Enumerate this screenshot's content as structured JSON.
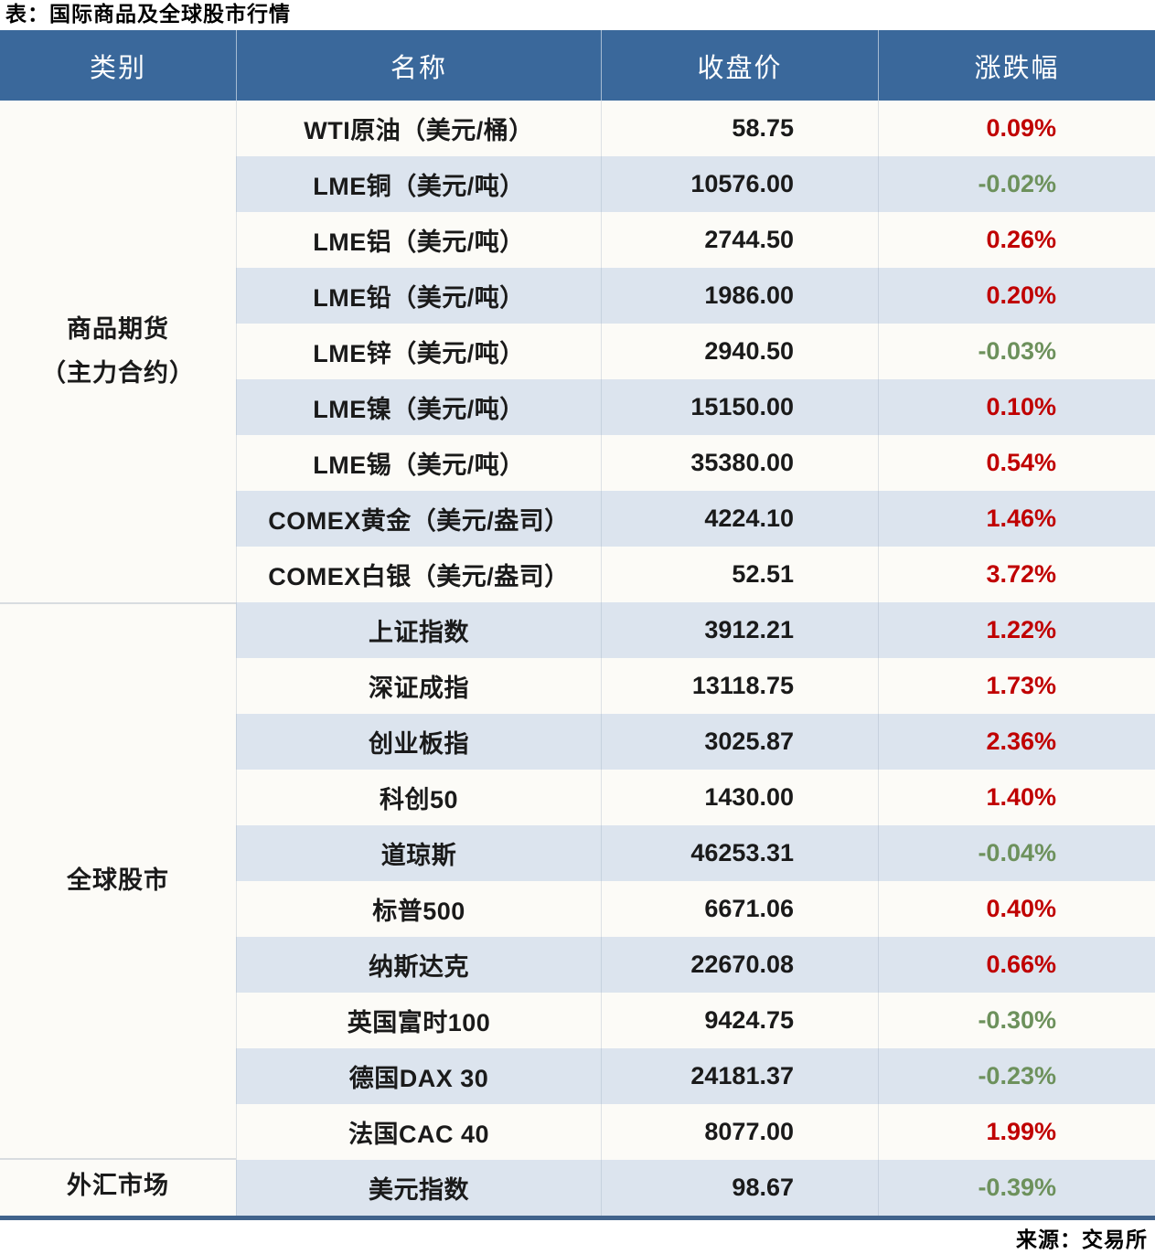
{
  "title": "表：国际商品及全球股市行情",
  "source": "来源：交易所",
  "columns": [
    "类别",
    "名称",
    "收盘价",
    "涨跌幅"
  ],
  "colors": {
    "header_bg": "#3A689B",
    "stripe": "#DCE4EE",
    "row_white": "#FCFBF7",
    "up": "#C00000",
    "down": "#6D915C",
    "bottom_border": "#41638C",
    "section_divider": "#D8DCE0"
  },
  "sections": [
    {
      "label_lines": [
        "商品期货",
        "（主力合约）"
      ],
      "rows": [
        {
          "name": "WTI原油（美元/桶）",
          "close": "58.75",
          "change": "0.09%",
          "direction": "up"
        },
        {
          "name": "LME铜（美元/吨）",
          "close": "10576.00",
          "change": "-0.02%",
          "direction": "down"
        },
        {
          "name": "LME铝（美元/吨）",
          "close": "2744.50",
          "change": "0.26%",
          "direction": "up"
        },
        {
          "name": "LME铅（美元/吨）",
          "close": "1986.00",
          "change": "0.20%",
          "direction": "up"
        },
        {
          "name": "LME锌（美元/吨）",
          "close": "2940.50",
          "change": "-0.03%",
          "direction": "down"
        },
        {
          "name": "LME镍（美元/吨）",
          "close": "15150.00",
          "change": "0.10%",
          "direction": "up"
        },
        {
          "name": "LME锡（美元/吨）",
          "close": "35380.00",
          "change": "0.54%",
          "direction": "up"
        },
        {
          "name": "COMEX黄金（美元/盎司）",
          "close": "4224.10",
          "change": "1.46%",
          "direction": "up"
        },
        {
          "name": "COMEX白银（美元/盎司）",
          "close": "52.51",
          "change": "3.72%",
          "direction": "up"
        }
      ]
    },
    {
      "label_lines": [
        "全球股市"
      ],
      "rows": [
        {
          "name": "上证指数",
          "close": "3912.21",
          "change": "1.22%",
          "direction": "up"
        },
        {
          "name": "深证成指",
          "close": "13118.75",
          "change": "1.73%",
          "direction": "up"
        },
        {
          "name": "创业板指",
          "close": "3025.87",
          "change": "2.36%",
          "direction": "up"
        },
        {
          "name": "科创50",
          "close": "1430.00",
          "change": "1.40%",
          "direction": "up"
        },
        {
          "name": "道琼斯",
          "close": "46253.31",
          "change": "-0.04%",
          "direction": "down"
        },
        {
          "name": "标普500",
          "close": "6671.06",
          "change": "0.40%",
          "direction": "up"
        },
        {
          "name": "纳斯达克",
          "close": "22670.08",
          "change": "0.66%",
          "direction": "up"
        },
        {
          "name": "英国富时100",
          "close": "9424.75",
          "change": "-0.30%",
          "direction": "down"
        },
        {
          "name": "德国DAX 30",
          "close": "24181.37",
          "change": "-0.23%",
          "direction": "down"
        },
        {
          "name": "法国CAC 40",
          "close": "8077.00",
          "change": "1.99%",
          "direction": "up"
        }
      ]
    },
    {
      "label_lines": [
        "外汇市场"
      ],
      "rows": [
        {
          "name": "美元指数",
          "close": "98.67",
          "change": "-0.39%",
          "direction": "down"
        }
      ]
    }
  ]
}
